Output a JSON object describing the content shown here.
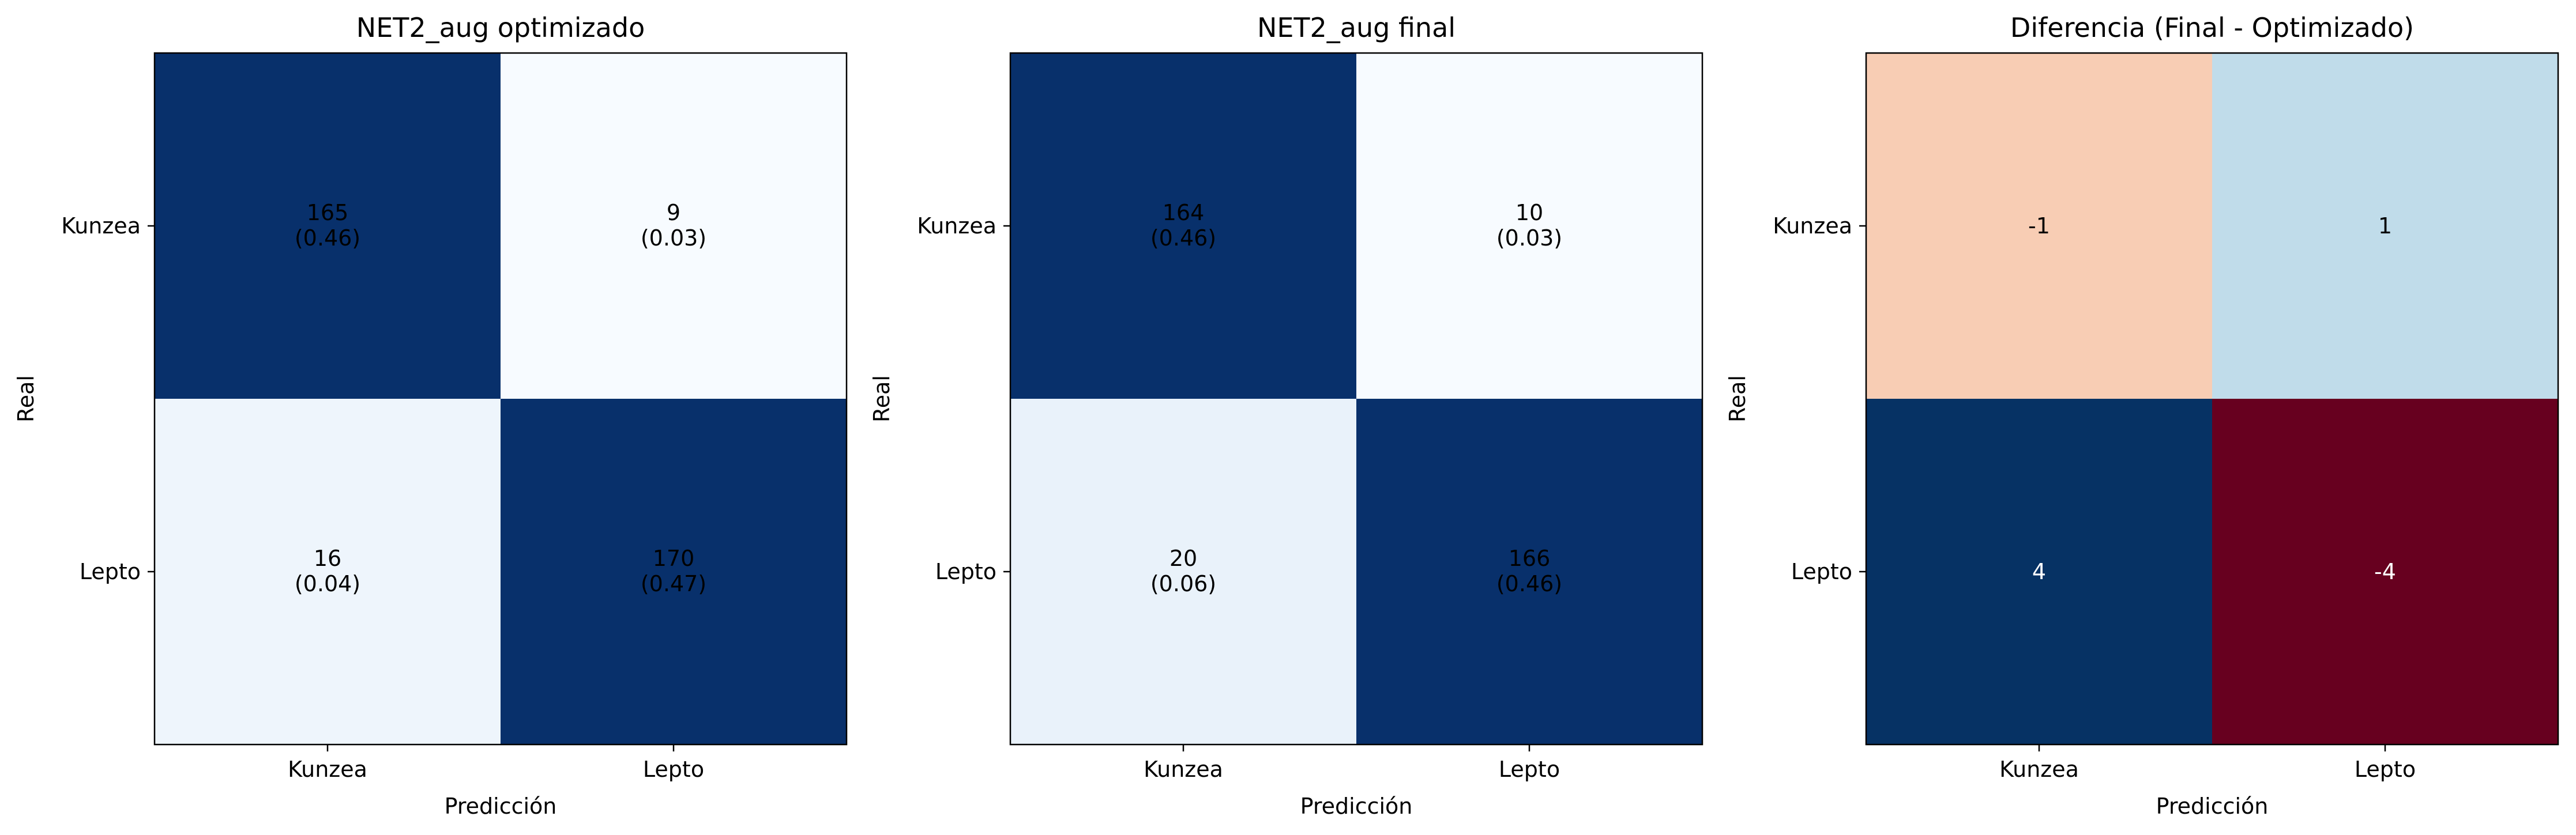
{
  "chart_data": [
    {
      "type": "heatmap",
      "title": "NET2_aug optimizado",
      "xlabel": "Predicción",
      "ylabel": "Real",
      "x_categories": [
        "Kunzea",
        "Lepto"
      ],
      "y_categories": [
        "Kunzea",
        "Lepto"
      ],
      "colormap": "Blues",
      "values": [
        [
          165,
          9
        ],
        [
          16,
          170
        ]
      ],
      "proportions": [
        [
          "(0.46)",
          "(0.03)"
        ],
        [
          "(0.04)",
          "(0.47)"
        ]
      ],
      "cell_colors": [
        [
          "#08306b",
          "#f7fbff"
        ],
        [
          "#eef5fc",
          "#08306b"
        ]
      ],
      "text_colors": [
        [
          "#000000",
          "#000000"
        ],
        [
          "#000000",
          "#000000"
        ]
      ]
    },
    {
      "type": "heatmap",
      "title": "NET2_aug final",
      "xlabel": "Predicción",
      "ylabel": "Real",
      "x_categories": [
        "Kunzea",
        "Lepto"
      ],
      "y_categories": [
        "Kunzea",
        "Lepto"
      ],
      "colormap": "Blues",
      "values": [
        [
          164,
          10
        ],
        [
          20,
          166
        ]
      ],
      "proportions": [
        [
          "(0.46)",
          "(0.03)"
        ],
        [
          "(0.06)",
          "(0.46)"
        ]
      ],
      "cell_colors": [
        [
          "#08306b",
          "#f7fbff"
        ],
        [
          "#e9f2fa",
          "#08306b"
        ]
      ],
      "text_colors": [
        [
          "#000000",
          "#000000"
        ],
        [
          "#000000",
          "#000000"
        ]
      ]
    },
    {
      "type": "heatmap",
      "title": "Diferencia (Final - Optimizado)",
      "xlabel": "Predicción",
      "ylabel": "Real",
      "x_categories": [
        "Kunzea",
        "Lepto"
      ],
      "y_categories": [
        "Kunzea",
        "Lepto"
      ],
      "colormap": "RdBu",
      "values": [
        [
          -1,
          1
        ],
        [
          4,
          -4
        ]
      ],
      "cell_colors": [
        [
          "#f8cdb4",
          "#c0dcea"
        ],
        [
          "#063264",
          "#67001f"
        ]
      ],
      "text_colors": [
        [
          "#000000",
          "#000000"
        ],
        [
          "#ffffff",
          "#ffffff"
        ]
      ]
    }
  ]
}
